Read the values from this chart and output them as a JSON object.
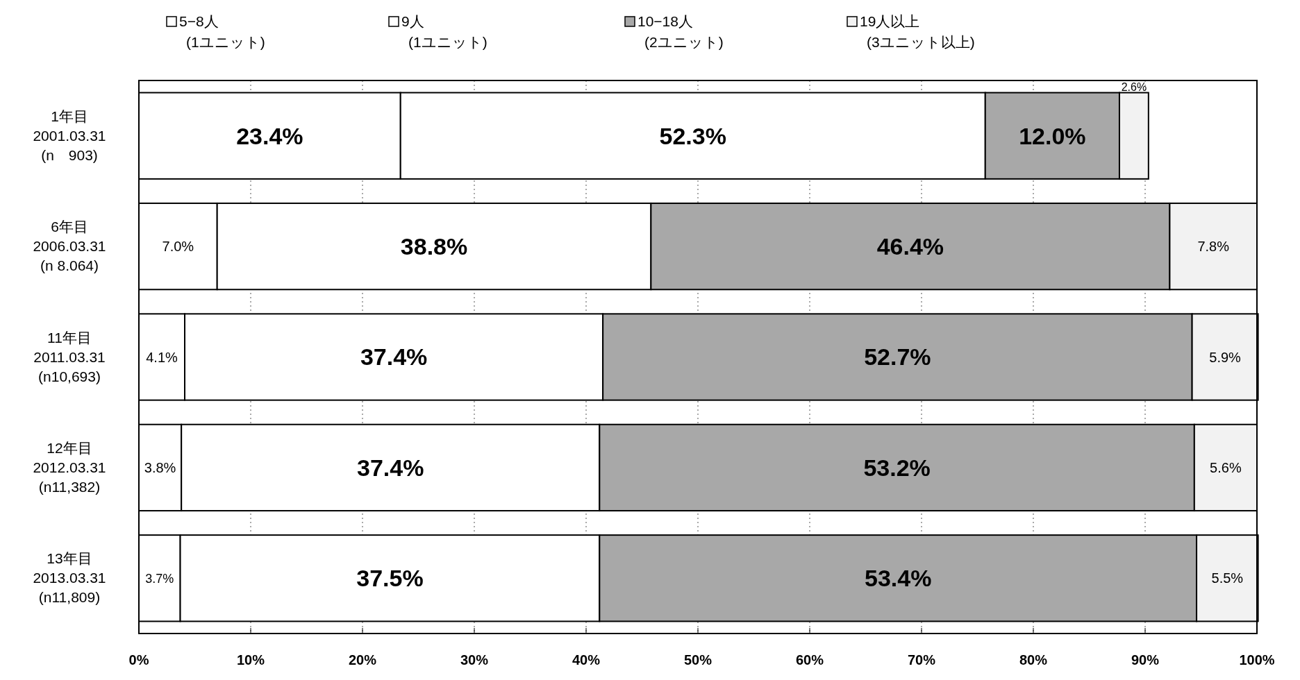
{
  "chart_data": {
    "type": "bar",
    "orientation": "horizontal",
    "stacked": true,
    "categories": [
      "1年目\n2001.03.31\n(n　903)",
      "6年目\n2006.03.31\n(n 8.064)",
      "11年目\n2011.03.31\n(n10,693)",
      "12年目\n2012.03.31\n(n11,382)",
      "13年目\n2013.03.31\n(n11,809)"
    ],
    "series": [
      {
        "name": "5−8人\n(1ユニット)",
        "color": "#ffffff",
        "values": [
          23.4,
          7.0,
          4.1,
          3.8,
          3.7
        ],
        "value_labels": [
          "23.4%",
          "7.0%",
          "4.1%",
          "3.8%",
          "3.7%"
        ]
      },
      {
        "name": "9人\n(1ユニット)",
        "color": "#ffffff",
        "values": [
          52.3,
          38.8,
          37.4,
          37.4,
          37.5
        ],
        "value_labels": [
          "52.3%",
          "38.8%",
          "37.4%",
          "37.4%",
          "37.5%"
        ]
      },
      {
        "name": "10−18人\n(2ユニット)",
        "color": "#a8a8a8",
        "values": [
          12.0,
          46.4,
          52.7,
          53.2,
          53.4
        ],
        "value_labels": [
          "12.0%",
          "46.4%",
          "52.7%",
          "53.2%",
          "53.4%"
        ]
      },
      {
        "name": "19人以上\n(3ユニット以上)",
        "color": "#f2f2f2",
        "values": [
          2.6,
          7.8,
          5.9,
          5.6,
          5.5
        ],
        "value_labels": [
          "2.6%",
          "7.8%",
          "5.9%",
          "5.6%",
          "5.5%"
        ]
      }
    ],
    "xlim": [
      0,
      100
    ],
    "xticks": [
      {
        "value": 0,
        "label": "0%"
      },
      {
        "value": 10,
        "label": "10%"
      },
      {
        "value": 20,
        "label": "20%"
      },
      {
        "value": 30,
        "label": "30%"
      },
      {
        "value": 40,
        "label": "40%"
      },
      {
        "value": 50,
        "label": "50%"
      },
      {
        "value": 60,
        "label": "60%"
      },
      {
        "value": 70,
        "label": "70%"
      },
      {
        "value": 80,
        "label": "80%"
      },
      {
        "value": 90,
        "label": "90%"
      },
      {
        "value": 100,
        "label": "100%"
      }
    ],
    "grid": "x",
    "legend": "top"
  }
}
